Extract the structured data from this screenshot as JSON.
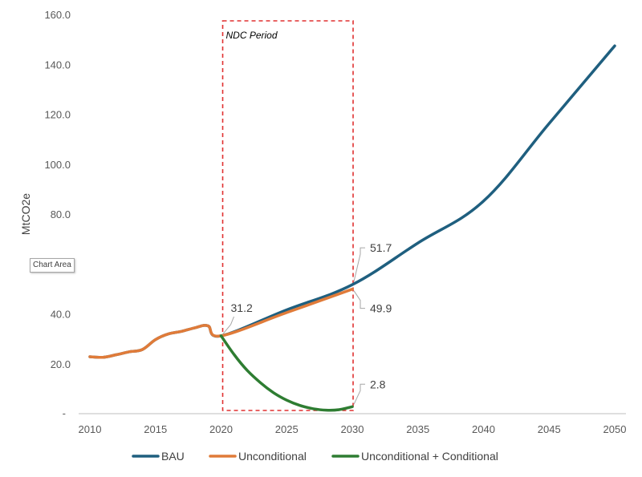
{
  "chart_data": {
    "type": "line",
    "ylabel": "MtCO2e",
    "xlim": [
      2009,
      2051
    ],
    "ylim": [
      0,
      160
    ],
    "x_ticks": [
      2010,
      2015,
      2020,
      2025,
      2030,
      2035,
      2040,
      2045,
      2050
    ],
    "y_ticks": [
      20,
      40,
      80,
      100,
      120,
      140,
      160
    ],
    "y_tick_labels": [
      "20.0",
      "40.0",
      "80.0",
      "100.0",
      "120.0",
      "140.0",
      "160.0"
    ],
    "y_zero_label": "-",
    "grid": false,
    "legend_position": "bottom",
    "ndc_period": {
      "label": "NDC Period",
      "x_range": [
        2020,
        2030
      ],
      "color": "#E03030"
    },
    "series": [
      {
        "name": "BAU",
        "color": "#1F5F7F",
        "points": [
          [
            2010,
            22.8
          ],
          [
            2011,
            22.6
          ],
          [
            2012,
            23.6
          ],
          [
            2013,
            24.8
          ],
          [
            2014,
            25.7
          ],
          [
            2015,
            29.7
          ],
          [
            2016,
            32.0
          ],
          [
            2017,
            33.0
          ],
          [
            2018,
            34.4
          ],
          [
            2019,
            35.2
          ],
          [
            2020,
            31.2
          ],
          [
            2025,
            41.6
          ],
          [
            2030,
            51.7
          ],
          [
            2035,
            68.4
          ],
          [
            2040,
            85.2
          ],
          [
            2045,
            116.3
          ],
          [
            2050,
            147.4
          ]
        ]
      },
      {
        "name": "Unconditional",
        "color": "#E07B39",
        "points": [
          [
            2010,
            22.8
          ],
          [
            2011,
            22.6
          ],
          [
            2012,
            23.6
          ],
          [
            2013,
            24.8
          ],
          [
            2014,
            25.7
          ],
          [
            2015,
            29.7
          ],
          [
            2016,
            32.0
          ],
          [
            2017,
            33.0
          ],
          [
            2018,
            34.4
          ],
          [
            2019,
            35.2
          ],
          [
            2020,
            31.2
          ],
          [
            2025,
            40.5
          ],
          [
            2030,
            49.9
          ]
        ]
      },
      {
        "name": "Unconditional + Conditional",
        "color": "#2E7D32",
        "points": [
          [
            2020,
            31.2
          ],
          [
            2021,
            23.6
          ],
          [
            2022,
            17.3
          ],
          [
            2023,
            12.4
          ],
          [
            2024,
            8.4
          ],
          [
            2025,
            5.4
          ],
          [
            2026,
            3.3
          ],
          [
            2027,
            2.0
          ],
          [
            2028,
            1.4
          ],
          [
            2029,
            1.6
          ],
          [
            2030,
            2.8
          ]
        ]
      }
    ],
    "data_labels": [
      {
        "x": 2020,
        "y": 31.2,
        "text": "31.2"
      },
      {
        "x": 2030,
        "y": 51.7,
        "text": "51.7"
      },
      {
        "x": 2030,
        "y": 49.9,
        "text": "49.9"
      },
      {
        "x": 2030,
        "y": 2.8,
        "text": "2.8"
      }
    ]
  },
  "tooltip": {
    "text": "Chart Area"
  }
}
